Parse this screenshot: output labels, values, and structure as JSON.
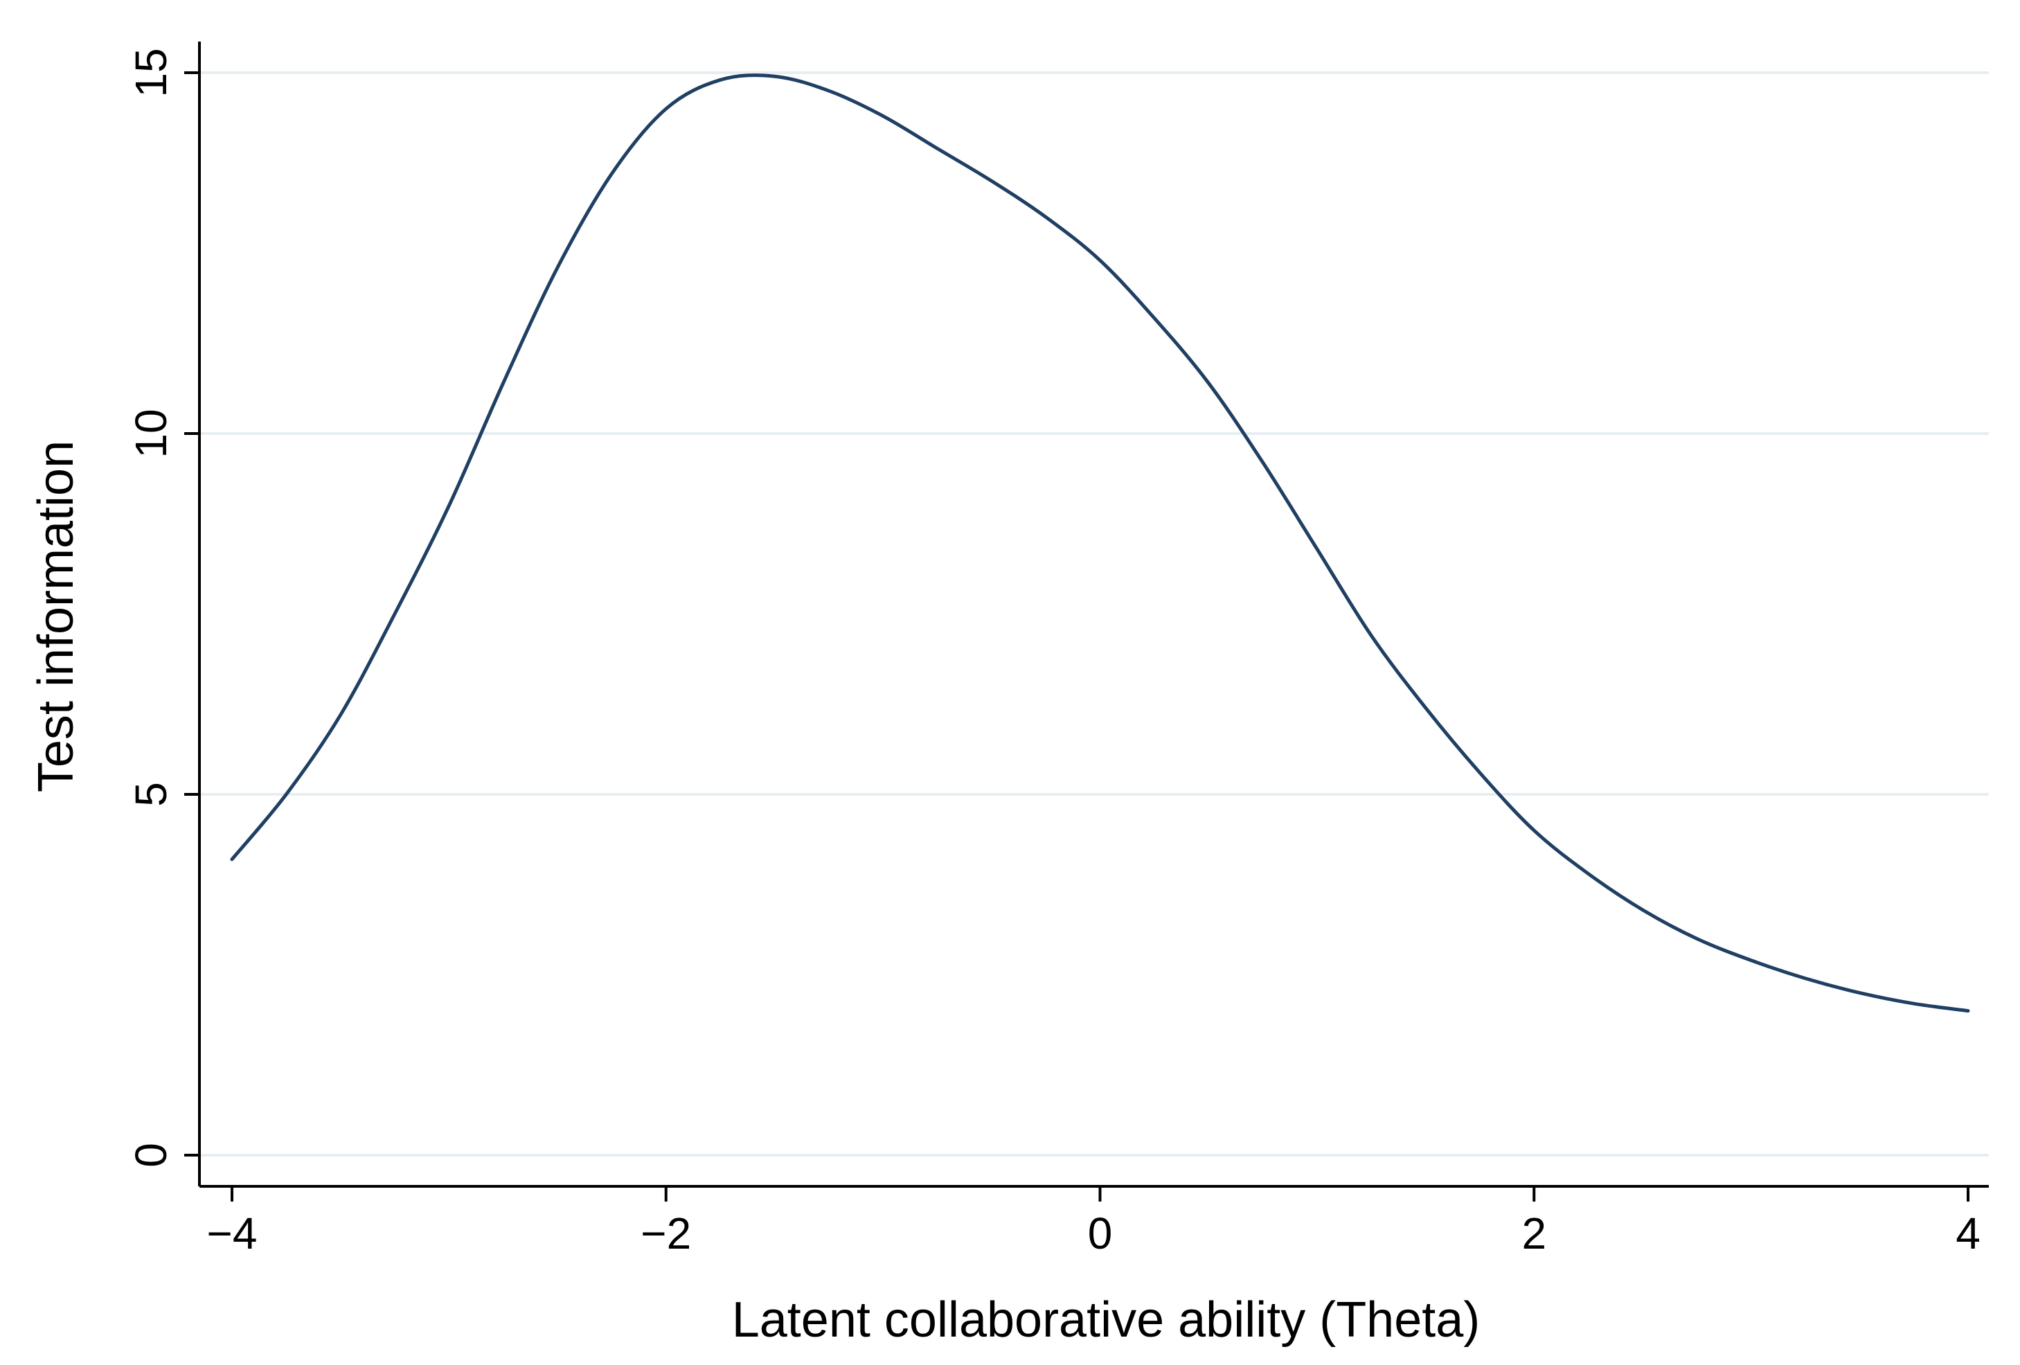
{
  "chart_data": {
    "type": "line",
    "title": "",
    "xlabel": "Latent collaborative ability (Theta)",
    "ylabel": "Test information",
    "xlim": [
      -4,
      4
    ],
    "ylim": [
      0,
      15
    ],
    "xticks": [
      -4,
      -2,
      0,
      2,
      4
    ],
    "xtick_labels": [
      "−4",
      "−2",
      "0",
      "2",
      "4"
    ],
    "yticks": [
      0,
      5,
      10,
      15
    ],
    "ytick_labels": [
      "0",
      "5",
      "10",
      "15"
    ],
    "grid": "horizontal",
    "legend": "none",
    "colors": {
      "line": "#1f3f63",
      "grid": "#e6eef2",
      "axis": "#000000",
      "background": "#ffffff"
    },
    "series": [
      {
        "x": [
          -4.0,
          -3.75,
          -3.5,
          -3.25,
          -3.0,
          -2.75,
          -2.5,
          -2.25,
          -2.0,
          -1.75,
          -1.5,
          -1.25,
          -1.0,
          -0.75,
          -0.5,
          -0.25,
          0.0,
          0.25,
          0.5,
          0.75,
          1.0,
          1.25,
          1.5,
          1.75,
          2.0,
          2.25,
          2.5,
          2.75,
          3.0,
          3.25,
          3.5,
          3.75,
          4.0
        ],
        "y": [
          4.1,
          5.0,
          6.1,
          7.5,
          9.0,
          10.7,
          12.3,
          13.6,
          14.5,
          14.9,
          14.95,
          14.75,
          14.4,
          13.95,
          13.5,
          13.0,
          12.4,
          11.6,
          10.7,
          9.6,
          8.4,
          7.2,
          6.2,
          5.3,
          4.5,
          3.9,
          3.4,
          3.0,
          2.7,
          2.45,
          2.25,
          2.1,
          2.0
        ]
      }
    ]
  }
}
